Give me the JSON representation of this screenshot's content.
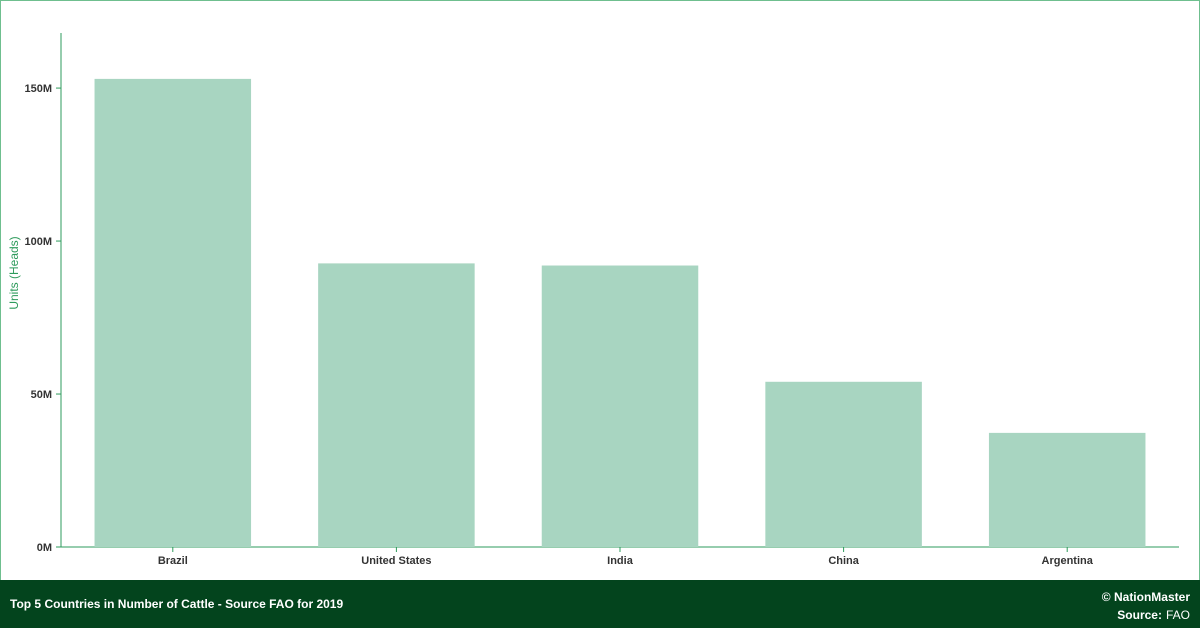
{
  "chart_data": {
    "type": "bar",
    "categories": [
      "Brazil",
      "United States",
      "India",
      "China",
      "Argentina"
    ],
    "values": [
      153000000,
      92700000,
      92000000,
      54000000,
      37300000
    ],
    "ylabel": "Units (Heads)",
    "ylim": [
      0,
      168000000
    ],
    "yticks": [
      0,
      50000000,
      100000000,
      150000000
    ],
    "ytick_labels": [
      "0M",
      "50M",
      "100M",
      "150M"
    ],
    "grid": false
  },
  "colors": {
    "bar": "#a8d5c1",
    "axis": "#2e9b5c",
    "footer_bg": "#03441d"
  },
  "footer": {
    "title": "Top 5 Countries in Number of Cattle - Source FAO for 2019",
    "copyright": "© NationMaster",
    "source_label": "Source:",
    "source_value": "FAO"
  }
}
